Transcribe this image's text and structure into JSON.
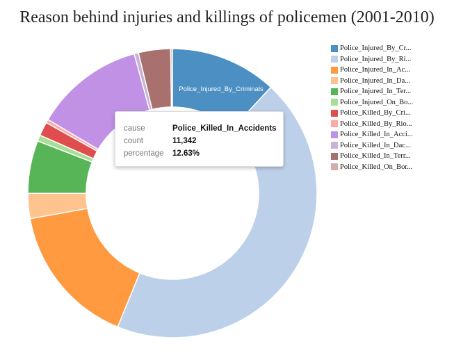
{
  "title": "Reason behind injuries and killings of policemen (2001-2010)",
  "chart_data": {
    "type": "pie",
    "donut": true,
    "categories": [
      "Police_Injured_By_Cr...",
      "Police_Injured_By_Ri...",
      "Police_Injured_In_Ac...",
      "Police_Injured_In_Da...",
      "Police_Injured_In_Ter...",
      "Police_Injured_On_Bo...",
      "Police_Killed_By_Cri...",
      "Police_Killed_By_Rio...",
      "Police_Killed_In_Acci...",
      "Police_Killed_In_Dac...",
      "Police_Killed_In_Terr...",
      "Police_Killed_On_Bor..."
    ],
    "values": [
      12.3,
      45.7,
      16.5,
      2.9,
      6.1,
      0.7,
      1.6,
      0.4,
      12.63,
      0.5,
      3.7,
      0.2
    ],
    "colors": [
      "#4c8fc3",
      "#bdd0ea",
      "#ff9a40",
      "#ffc48d",
      "#57b557",
      "#a8df94",
      "#e04d4f",
      "#ffa9a5",
      "#c191e6",
      "#c6b3d7",
      "#a8716e",
      "#d2aeab"
    ],
    "slice_label": "Police_Injured_By_Criminals",
    "legend_position": "right",
    "tooltip": {
      "cause_label": "cause",
      "cause_value": "Police_Killed_In_Accidents",
      "count_label": "count",
      "count_value": "11,342",
      "percentage_label": "percentage",
      "percentage_value": "12.63%"
    }
  }
}
